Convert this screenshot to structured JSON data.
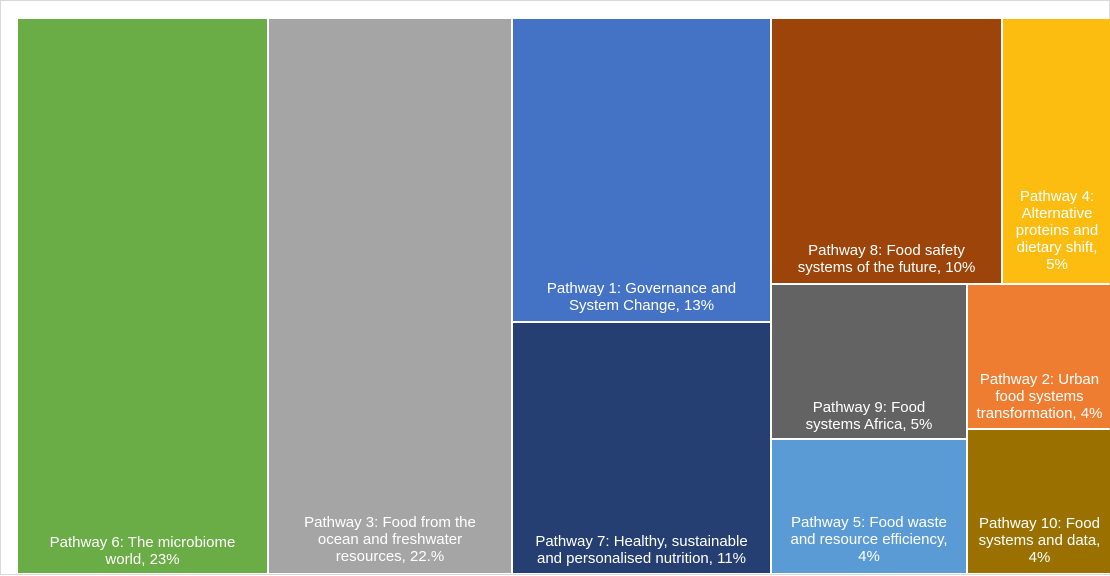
{
  "chart_data": {
    "type": "treemap",
    "title": "",
    "items": [
      {
        "label_lines": [
          "Pathway 6: The microbiome",
          "world, 23%"
        ],
        "value": 23,
        "color": "#6aac45"
      },
      {
        "label_lines": [
          "Pathway 3: Food from the",
          "ocean and freshwater",
          "resources, 22.%"
        ],
        "value": 22,
        "color": "#a5a5a5"
      },
      {
        "label_lines": [
          "Pathway 1: Governance and",
          "System Change, 13%"
        ],
        "value": 13,
        "color": "#4472c4"
      },
      {
        "label_lines": [
          "Pathway 7: Healthy, sustainable",
          "and personalised nutrition, 11%"
        ],
        "value": 11,
        "color": "#263f72"
      },
      {
        "label_lines": [
          "Pathway 8: Food safety",
          "systems of the future, 10%"
        ],
        "value": 10,
        "color": "#9c4409"
      },
      {
        "label_lines": [
          "Pathway 4:",
          "Alternative",
          "proteins and",
          "dietary shift,",
          "5%"
        ],
        "value": 5,
        "color": "#fcbd10"
      },
      {
        "label_lines": [
          "Pathway 9: Food",
          "systems Africa, 5%"
        ],
        "value": 5,
        "color": "#636363"
      },
      {
        "label_lines": [
          "Pathway 2: Urban",
          "food systems",
          "transformation, 4%"
        ],
        "value": 4,
        "color": "#ef7d31"
      },
      {
        "label_lines": [
          "Pathway 5: Food waste",
          "and resource efficiency,",
          "4%"
        ],
        "value": 4,
        "color": "#5b9bd5"
      },
      {
        "label_lines": [
          "Pathway 10: Food",
          "systems and data,",
          "4%"
        ],
        "value": 4,
        "color": "#9a7100"
      }
    ]
  }
}
